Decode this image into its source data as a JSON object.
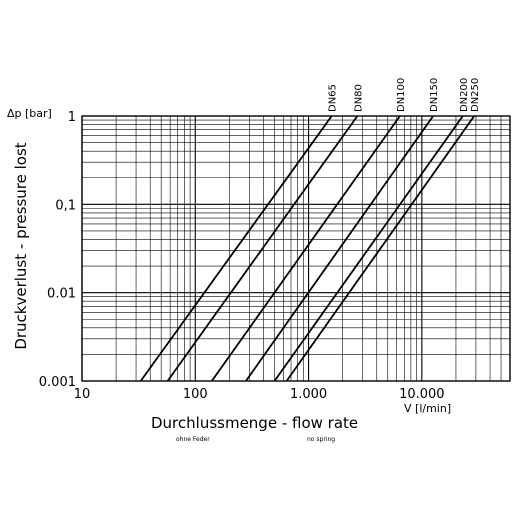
{
  "chart_data": {
    "type": "line",
    "x_scale": "log",
    "y_scale": "log",
    "xlim": [
      10,
      60000
    ],
    "ylim": [
      0.001,
      1
    ],
    "grid": true,
    "y_tick_labels": [
      {
        "value": 1,
        "label": "1"
      },
      {
        "value": 0.1,
        "label": "0,1"
      },
      {
        "value": 0.01,
        "label": "0.01"
      },
      {
        "value": 0.001,
        "label": "0.001"
      }
    ],
    "x_tick_labels": [
      {
        "value": 10,
        "label": "10"
      },
      {
        "value": 100,
        "label": "100"
      },
      {
        "value": 1000,
        "label": "1.000"
      },
      {
        "value": 10000,
        "label": "10.000"
      }
    ],
    "ylabel": "Druckverlust - pressure lost",
    "ylabel_unit": "Δp [bar]",
    "xlabel": "Durchlussmenge - flow rate",
    "xlabel_unit": "V [l/min]",
    "notes": [
      "ohne Feder",
      "no spring"
    ],
    "series": [
      {
        "name": "DN65",
        "x": [
          33,
          1600
        ],
        "y": [
          0.001,
          1
        ]
      },
      {
        "name": "DN80",
        "x": [
          57,
          2700
        ],
        "y": [
          0.001,
          1
        ]
      },
      {
        "name": "DN100",
        "x": [
          140,
          6400
        ],
        "y": [
          0.001,
          1
        ]
      },
      {
        "name": "DN150",
        "x": [
          280,
          12600
        ],
        "y": [
          0.001,
          1
        ]
      },
      {
        "name": "DN200",
        "x": [
          500,
          23000
        ],
        "y": [
          0.001,
          1
        ]
      },
      {
        "name": "DN250",
        "x": [
          640,
          29000
        ],
        "y": [
          0.001,
          1
        ]
      }
    ]
  }
}
